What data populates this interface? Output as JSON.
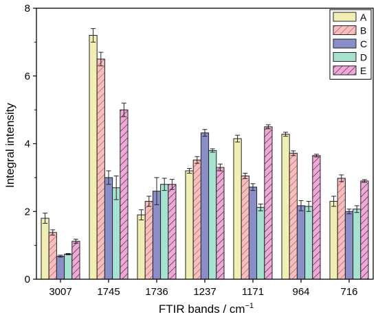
{
  "chart_data": {
    "type": "bar",
    "xlabel": "FTIR bands / cm",
    "xlabel_superscript": "−1",
    "ylabel": "Integral intensity",
    "ylim": [
      0,
      8
    ],
    "yticks": [
      "0",
      "2",
      "4",
      "6",
      "8"
    ],
    "grid": false,
    "legend_position": "top-right",
    "categories": [
      "3007",
      "1745",
      "1736",
      "1237",
      "1171",
      "964",
      "716"
    ],
    "series": [
      {
        "name": "A",
        "color": "#f1eeb4",
        "pattern": "none",
        "values": [
          1.8,
          7.2,
          1.9,
          3.2,
          4.15,
          4.28,
          2.3
        ],
        "errors": [
          0.15,
          0.2,
          0.15,
          0.07,
          0.1,
          0.06,
          0.15
        ]
      },
      {
        "name": "B",
        "color": "#f3c0c0",
        "pattern": "diag",
        "values": [
          1.38,
          6.5,
          2.3,
          3.52,
          3.05,
          3.72,
          2.98
        ],
        "errors": [
          0.08,
          0.2,
          0.15,
          0.1,
          0.08,
          0.07,
          0.1
        ]
      },
      {
        "name": "C",
        "color": "#8a8ec8",
        "pattern": "none",
        "values": [
          0.68,
          3.0,
          2.6,
          4.32,
          2.72,
          2.17,
          2.0
        ],
        "errors": [
          0.03,
          0.2,
          0.4,
          0.1,
          0.1,
          0.15,
          0.07
        ]
      },
      {
        "name": "D",
        "color": "#a6e2d0",
        "pattern": "none",
        "values": [
          0.74,
          2.7,
          2.8,
          3.8,
          2.12,
          2.15,
          2.07
        ],
        "errors": [
          0.02,
          0.35,
          0.18,
          0.05,
          0.1,
          0.15,
          0.1
        ]
      },
      {
        "name": "E",
        "color": "#f0a8d8",
        "pattern": "diag",
        "values": [
          1.12,
          5.0,
          2.8,
          3.3,
          4.5,
          3.65,
          2.9
        ],
        "errors": [
          0.06,
          0.2,
          0.15,
          0.1,
          0.06,
          0.04,
          0.04
        ]
      }
    ]
  }
}
